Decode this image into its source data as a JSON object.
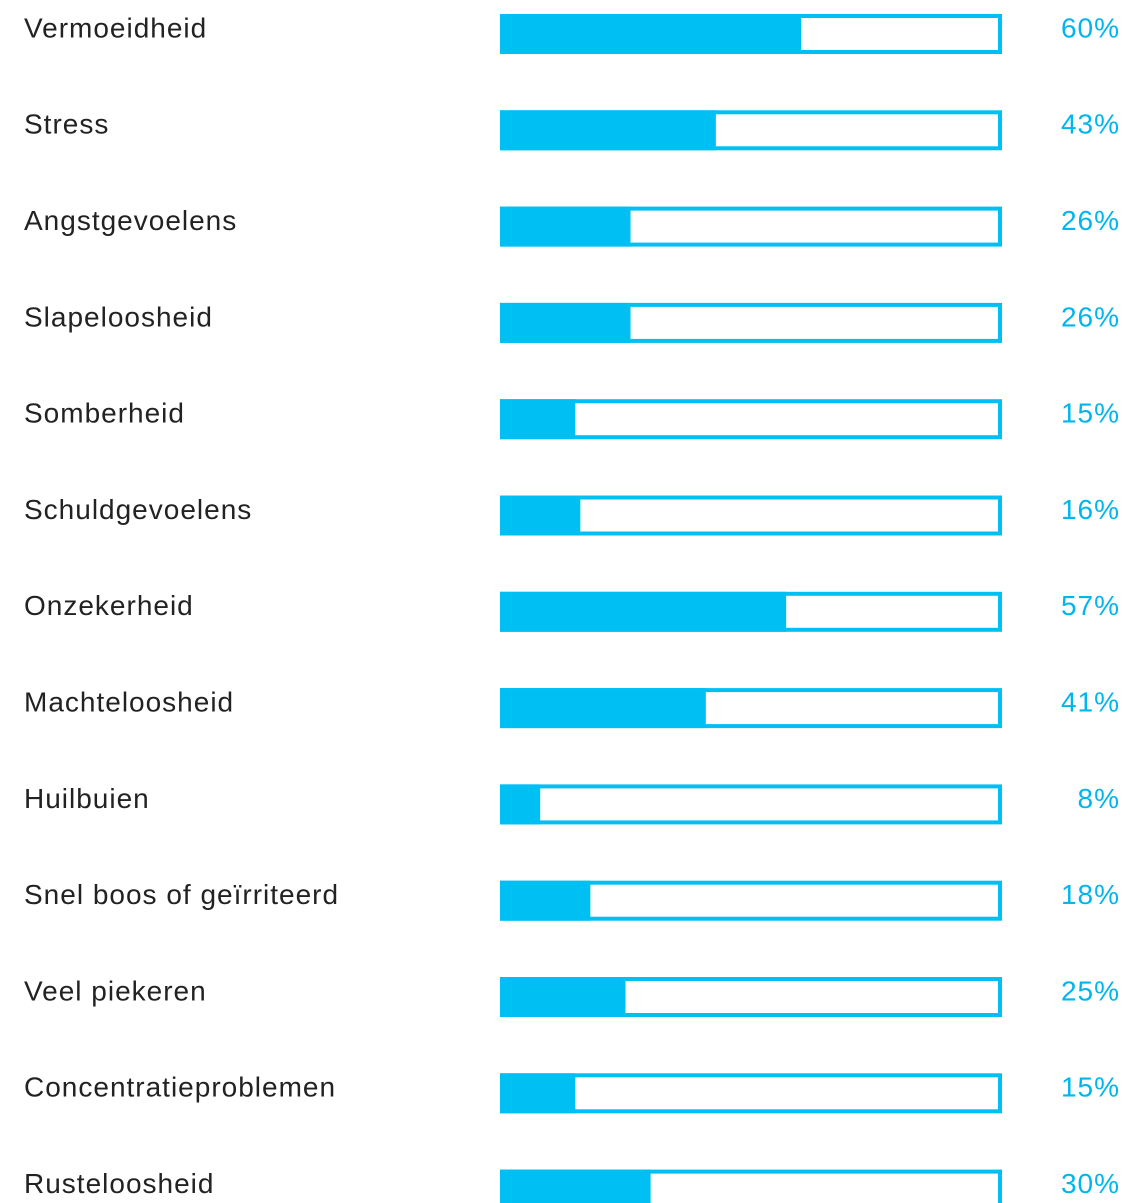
{
  "chart_data": {
    "type": "bar",
    "orientation": "horizontal",
    "categories": [
      "Vermoeidheid",
      "Stress",
      "Angstgevoelens",
      "Slapeloosheid",
      "Somberheid",
      "Schuldgevoelens",
      "Onzekerheid",
      "Machteloosheid",
      "Huilbuien",
      "Snel boos of geïrriteerd",
      "Veel piekeren",
      "Concentratieproblemen",
      "Rusteloosheid"
    ],
    "values": [
      60,
      43,
      26,
      26,
      15,
      16,
      57,
      41,
      8,
      18,
      25,
      15,
      30
    ],
    "value_labels": [
      "60%",
      "43%",
      "26%",
      "26%",
      "15%",
      "16%",
      "57%",
      "41%",
      "8%",
      "18%",
      "25%",
      "15%",
      "30%"
    ],
    "color": "#00bff3",
    "xlim": [
      0,
      100
    ]
  }
}
